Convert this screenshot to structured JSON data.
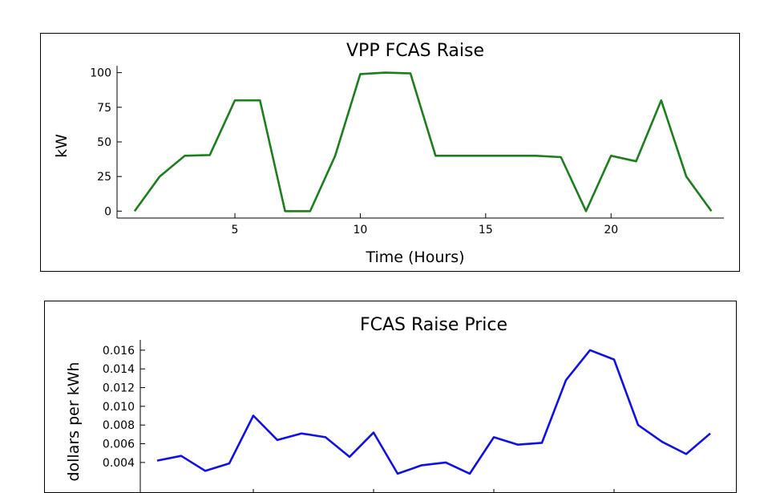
{
  "chart_data": [
    {
      "type": "line",
      "title": "VPP FCAS Raise",
      "xlabel": "Time (Hours)",
      "ylabel": "kW",
      "xlim": [
        0.3,
        24.5
      ],
      "ylim": [
        -5,
        105
      ],
      "xticks": [
        5,
        10,
        15,
        20
      ],
      "yticks": [
        0,
        25,
        50,
        75,
        100
      ],
      "ytick_labels": [
        "0",
        "25",
        "50",
        "75",
        "100"
      ],
      "grid": false,
      "series": [
        {
          "color": "#1b7f1b",
          "x": [
            1,
            2,
            3,
            4,
            5,
            6,
            7,
            8,
            9,
            10,
            11,
            12,
            13,
            14,
            15,
            16,
            17,
            18,
            19,
            20,
            21,
            22,
            23,
            24
          ],
          "values": [
            0,
            25,
            40,
            40.5,
            80,
            80,
            0,
            0,
            40,
            99,
            100,
            99.5,
            40,
            40,
            40,
            40,
            40,
            39,
            0,
            40,
            36,
            80,
            25,
            0
          ]
        }
      ]
    },
    {
      "type": "line",
      "title": "FCAS Raise Price",
      "ylabel": "dollars per kWh",
      "xlim": [
        0.3,
        24.5
      ],
      "ylim": [
        0.00065,
        0.0171
      ],
      "xticks": [
        5,
        10,
        15,
        20
      ],
      "yticks": [
        0.004,
        0.006,
        0.008,
        0.01,
        0.012,
        0.014,
        0.016
      ],
      "ytick_labels": [
        "0.004",
        "0.006",
        "0.008",
        "0.010",
        "0.012",
        "0.014",
        "0.016"
      ],
      "grid": false,
      "series": [
        {
          "color": "#1010e8",
          "x": [
            1,
            2,
            3,
            4,
            5,
            6,
            7,
            8,
            9,
            10,
            11,
            12,
            13,
            14,
            15,
            16,
            17,
            18,
            19,
            20,
            21,
            22,
            23,
            24
          ],
          "values": [
            0.0042,
            0.0047,
            0.0031,
            0.0039,
            0.009,
            0.0064,
            0.0071,
            0.0067,
            0.0046,
            0.0072,
            0.0028,
            0.0037,
            0.004,
            0.0028,
            0.0067,
            0.0059,
            0.0061,
            0.0128,
            0.016,
            0.015,
            0.008,
            0.0062,
            0.0049,
            0.0071
          ]
        }
      ]
    }
  ]
}
